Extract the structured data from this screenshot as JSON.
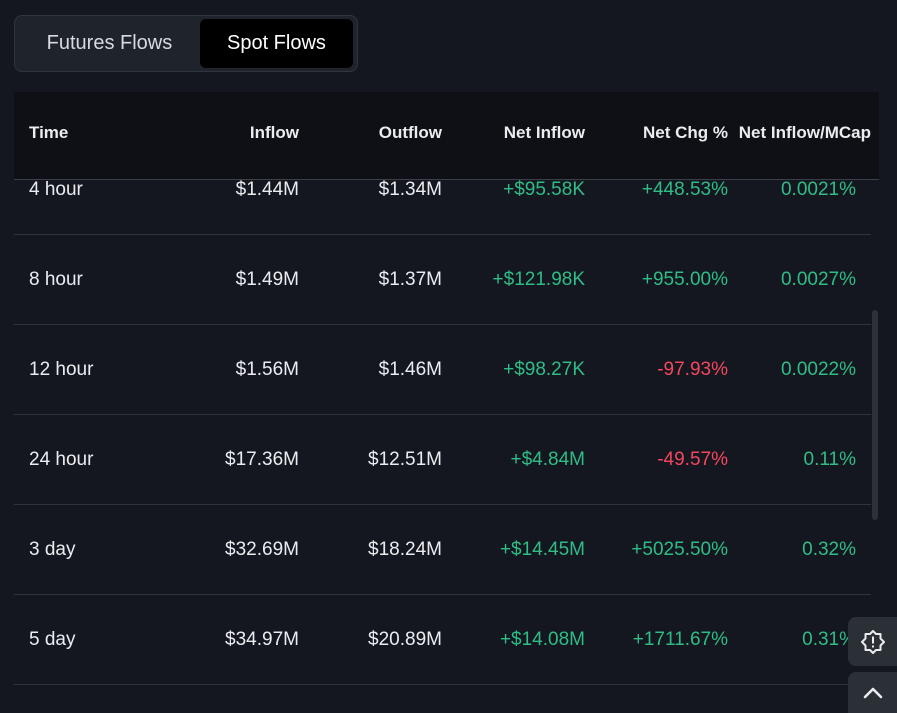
{
  "tabs": {
    "futures": "Futures Flows",
    "spot": "Spot Flows",
    "active": "spot"
  },
  "table": {
    "headers": {
      "time": "Time",
      "inflow": "Inflow",
      "outflow": "Outflow",
      "net_inflow": "Net Inflow",
      "net_chg": "Net Chg %",
      "net_inflow_mcap": "Net Inflow/MCap"
    },
    "rows": [
      {
        "time": "4 hour",
        "inflow": "$1.44M",
        "outflow": "$1.34M",
        "net_inflow": "+$95.58K",
        "net_chg": "+448.53%",
        "mcap": "0.0021%",
        "chg_sign": "pos"
      },
      {
        "time": "8 hour",
        "inflow": "$1.49M",
        "outflow": "$1.37M",
        "net_inflow": "+$121.98K",
        "net_chg": "+955.00%",
        "mcap": "0.0027%",
        "chg_sign": "pos"
      },
      {
        "time": "12 hour",
        "inflow": "$1.56M",
        "outflow": "$1.46M",
        "net_inflow": "+$98.27K",
        "net_chg": "-97.93%",
        "mcap": "0.0022%",
        "chg_sign": "neg"
      },
      {
        "time": "24 hour",
        "inflow": "$17.36M",
        "outflow": "$12.51M",
        "net_inflow": "+$4.84M",
        "net_chg": "-49.57%",
        "mcap": "0.11%",
        "chg_sign": "neg"
      },
      {
        "time": "3 day",
        "inflow": "$32.69M",
        "outflow": "$18.24M",
        "net_inflow": "+$14.45M",
        "net_chg": "+5025.50%",
        "mcap": "0.32%",
        "chg_sign": "pos"
      },
      {
        "time": "5 day",
        "inflow": "$34.97M",
        "outflow": "$20.89M",
        "net_inflow": "+$14.08M",
        "net_chg": "+1711.67%",
        "mcap": "0.31%",
        "chg_sign": "pos"
      }
    ]
  },
  "icons": {
    "feedback": "feedback-icon",
    "back_to_top": "chevron-up-icon"
  },
  "colors": {
    "positive": "#2ebd85",
    "negative": "#f6465d",
    "background": "#141720"
  }
}
